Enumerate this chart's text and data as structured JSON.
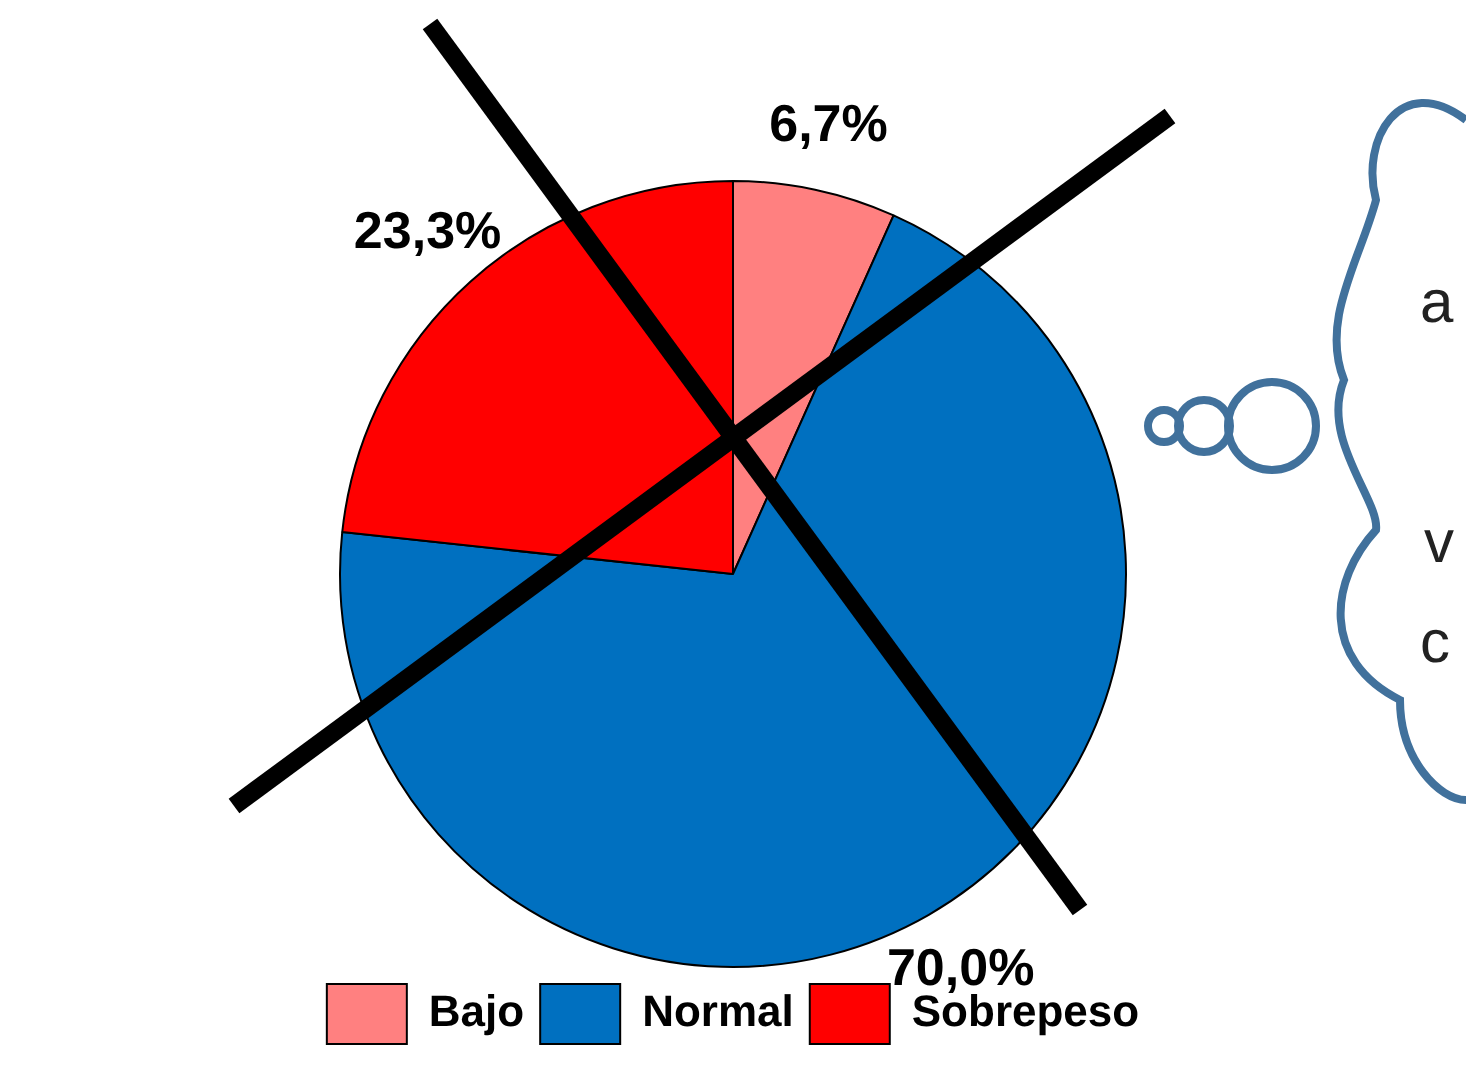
{
  "chart_data": {
    "type": "pie",
    "categories": [
      "Bajo",
      "Normal",
      "Sobrepeso"
    ],
    "values": [
      6.7,
      70.0,
      23.3
    ],
    "colors": [
      "#ff8080",
      "#0070c0",
      "#ff0000"
    ],
    "value_labels": [
      "6,7%",
      "70,0%",
      "23,3%"
    ],
    "legend": "bottom",
    "annotations": [
      "a",
      "v",
      "c"
    ]
  }
}
